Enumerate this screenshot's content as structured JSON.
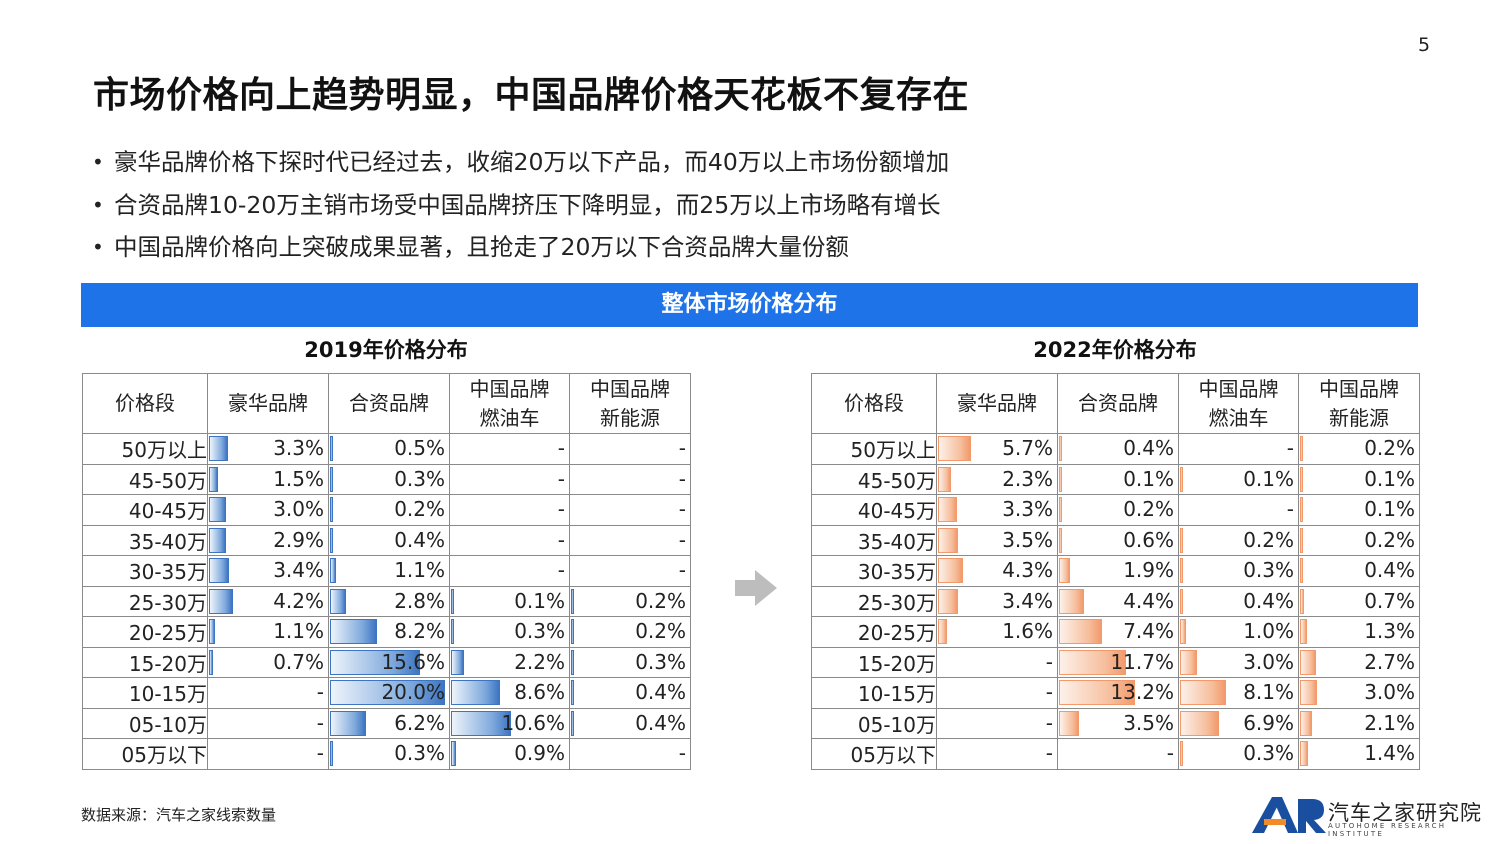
{
  "page_number": "5",
  "title": "市场价格向上趋势明显，中国品牌价格天花板不复存在",
  "bullets": [
    "豪华品牌价格下探时代已经过去，收缩20万以下产品，而40万以上市场份额增加",
    "合资品牌10-20万主销市场受中国品牌挤压下降明显，而25万以上市场略有增长",
    "中国品牌价格向上突破成果显著，且抢走了20万以下合资品牌大量份额"
  ],
  "bullet_symbol": "•",
  "banner": "整体市场价格分布",
  "columns": [
    "价格段",
    "豪华品牌",
    "合资品牌",
    "中国品牌 燃油车",
    "中国品牌 新能源"
  ],
  "columns_lines": [
    [
      "价格段"
    ],
    [
      "豪华品牌"
    ],
    [
      "合资品牌"
    ],
    [
      "中国品牌",
      "燃油车"
    ],
    [
      "中国品牌",
      "新能源"
    ]
  ],
  "tables": [
    {
      "subtitle": "2019年价格分布",
      "bar_color": "#3e75c2",
      "rows": [
        {
          "segment": "50万以上",
          "values": [
            "3.3%",
            "0.5%",
            "-",
            "-"
          ],
          "shares": [
            3.3,
            0.5,
            null,
            null
          ]
        },
        {
          "segment": "45-50万",
          "values": [
            "1.5%",
            "0.3%",
            "-",
            "-"
          ],
          "shares": [
            1.5,
            0.3,
            null,
            null
          ]
        },
        {
          "segment": "40-45万",
          "values": [
            "3.0%",
            "0.2%",
            "-",
            "-"
          ],
          "shares": [
            3.0,
            0.2,
            null,
            null
          ]
        },
        {
          "segment": "35-40万",
          "values": [
            "2.9%",
            "0.4%",
            "-",
            "-"
          ],
          "shares": [
            2.9,
            0.4,
            null,
            null
          ]
        },
        {
          "segment": "30-35万",
          "values": [
            "3.4%",
            "1.1%",
            "-",
            "-"
          ],
          "shares": [
            3.4,
            1.1,
            null,
            null
          ]
        },
        {
          "segment": "25-30万",
          "values": [
            "4.2%",
            "2.8%",
            "0.1%",
            "0.2%"
          ],
          "shares": [
            4.2,
            2.8,
            0.1,
            0.2
          ]
        },
        {
          "segment": "20-25万",
          "values": [
            "1.1%",
            "8.2%",
            "0.3%",
            "0.2%"
          ],
          "shares": [
            1.1,
            8.2,
            0.3,
            0.2
          ]
        },
        {
          "segment": "15-20万",
          "values": [
            "0.7%",
            "15.6%",
            "2.2%",
            "0.3%"
          ],
          "shares": [
            0.7,
            15.6,
            2.2,
            0.3
          ]
        },
        {
          "segment": "10-15万",
          "values": [
            "-",
            "20.0%",
            "8.6%",
            "0.4%"
          ],
          "shares": [
            null,
            20.0,
            8.6,
            0.4
          ]
        },
        {
          "segment": "05-10万",
          "values": [
            "-",
            "6.2%",
            "10.6%",
            "0.4%"
          ],
          "shares": [
            null,
            6.2,
            10.6,
            0.4
          ]
        },
        {
          "segment": "05万以下",
          "values": [
            "-",
            "0.3%",
            "0.9%",
            "-"
          ],
          "shares": [
            null,
            0.3,
            0.9,
            null
          ]
        }
      ]
    },
    {
      "subtitle": "2022年价格分布",
      "bar_color": "#f29a6b",
      "rows": [
        {
          "segment": "50万以上",
          "values": [
            "5.7%",
            "0.4%",
            "-",
            "0.2%"
          ],
          "shares": [
            5.7,
            0.4,
            null,
            0.2
          ]
        },
        {
          "segment": "45-50万",
          "values": [
            "2.3%",
            "0.1%",
            "0.1%",
            "0.1%"
          ],
          "shares": [
            2.3,
            0.1,
            0.1,
            0.1
          ]
        },
        {
          "segment": "40-45万",
          "values": [
            "3.3%",
            "0.2%",
            "-",
            "0.1%"
          ],
          "shares": [
            3.3,
            0.2,
            null,
            0.1
          ]
        },
        {
          "segment": "35-40万",
          "values": [
            "3.5%",
            "0.6%",
            "0.2%",
            "0.2%"
          ],
          "shares": [
            3.5,
            0.6,
            0.2,
            0.2
          ]
        },
        {
          "segment": "30-35万",
          "values": [
            "4.3%",
            "1.9%",
            "0.3%",
            "0.4%"
          ],
          "shares": [
            4.3,
            1.9,
            0.3,
            0.4
          ]
        },
        {
          "segment": "25-30万",
          "values": [
            "3.4%",
            "4.4%",
            "0.4%",
            "0.7%"
          ],
          "shares": [
            3.4,
            4.4,
            0.4,
            0.7
          ]
        },
        {
          "segment": "20-25万",
          "values": [
            "1.6%",
            "7.4%",
            "1.0%",
            "1.3%"
          ],
          "shares": [
            1.6,
            7.4,
            1.0,
            1.3
          ]
        },
        {
          "segment": "15-20万",
          "values": [
            "-",
            "11.7%",
            "3.0%",
            "2.7%"
          ],
          "shares": [
            null,
            11.7,
            3.0,
            2.7
          ]
        },
        {
          "segment": "10-15万",
          "values": [
            "-",
            "13.2%",
            "8.1%",
            "3.0%"
          ],
          "shares": [
            null,
            13.2,
            8.1,
            3.0
          ]
        },
        {
          "segment": "05-10万",
          "values": [
            "-",
            "3.5%",
            "6.9%",
            "2.1%"
          ],
          "shares": [
            null,
            3.5,
            6.9,
            2.1
          ]
        },
        {
          "segment": "05万以下",
          "values": [
            "-",
            "-",
            "0.3%",
            "1.4%"
          ],
          "shares": [
            null,
            null,
            0.3,
            1.4
          ]
        }
      ]
    }
  ],
  "bar_scale_max_percent": 20.0,
  "arrow_icon": "right-arrow-icon",
  "source": "数据来源：汽车之家线索数量",
  "logo": {
    "mark": "AR",
    "name": "汽车之家研究院",
    "subtitle": "AUTOHOME RESEARCH INSTITUTE",
    "colors": [
      "#1a4fa0",
      "#f08a2a"
    ]
  }
}
